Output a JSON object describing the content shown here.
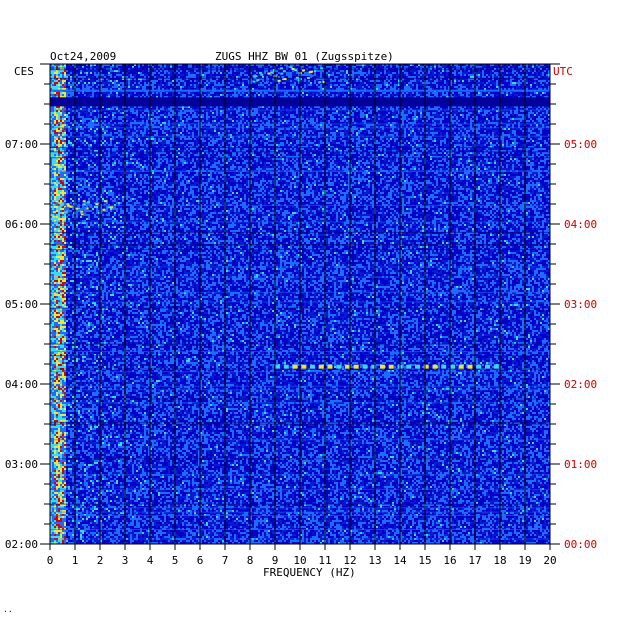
{
  "header": {
    "date": "Oct24,2009",
    "station": "ZUGS HHZ BW 01 (Zugsspitze)",
    "left_tz": "CES",
    "right_tz": "UTC"
  },
  "footer": {
    "mark": "··"
  },
  "colors": {
    "background": "#0000c8",
    "low": "#0a1ad0",
    "mid": "#1e6cff",
    "high": "#38d8ff",
    "hot": "#e8e83a",
    "peak": "#d80000",
    "utc_text": "#cc0000",
    "grid": "#000000"
  },
  "chart_data": {
    "type": "heatmap",
    "title": "ZUGS HHZ BW 01 (Zugsspitze)",
    "date": "Oct24,2009",
    "xlabel": "FREQUENCY (HZ)",
    "xlim": [
      0,
      20
    ],
    "x_ticks": [
      "0",
      "1",
      "2",
      "3",
      "4",
      "5",
      "6",
      "7",
      "8",
      "9",
      "10",
      "11",
      "12",
      "13",
      "14",
      "15",
      "16",
      "17",
      "18",
      "19",
      "20"
    ],
    "y_left_label": "CES",
    "y_right_label": "UTC",
    "y_left_ticks": [
      "07:00",
      "06:00",
      "05:00",
      "04:00",
      "03:00",
      "02:00"
    ],
    "y_right_ticks": [
      "05:00",
      "04:00",
      "03:00",
      "02:00",
      "01:00",
      "00:00"
    ],
    "time_range_hours_ces": [
      2.0,
      8.0
    ],
    "dominant_band_hz": [
      0.1,
      0.6
    ],
    "grid": true,
    "features": [
      {
        "time_ces": "07:32",
        "freq_hz": [
          0,
          20
        ],
        "kind": "broadband dark band"
      },
      {
        "time_ces": "07:40",
        "freq_hz": [
          0,
          20
        ],
        "kind": "broadband line"
      },
      {
        "time_ces": "06:12",
        "freq_hz": [
          0,
          2.5
        ],
        "kind": "energy burst"
      },
      {
        "time_ces": "04:13",
        "freq_hz": [
          9,
          18
        ],
        "kind": "narrowband tones"
      },
      {
        "time_ces": "07:53",
        "freq_hz": [
          8,
          11
        ],
        "kind": "energy burst"
      }
    ]
  }
}
